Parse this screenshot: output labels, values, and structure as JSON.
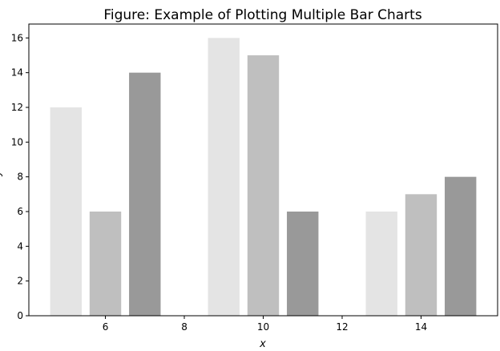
{
  "chart_data": {
    "type": "bar",
    "title": "Figure: Example of Plotting Multiple Bar Charts",
    "xlabel": "x",
    "ylabel": "y",
    "series": [
      {
        "color": "#e4e4e4",
        "x": [
          5,
          9,
          13
        ],
        "values": [
          12,
          16,
          6
        ]
      },
      {
        "color": "#bfbfbf",
        "x": [
          6,
          10,
          14
        ],
        "values": [
          6,
          15,
          7
        ]
      },
      {
        "color": "#999999",
        "x": [
          7,
          11,
          15
        ],
        "values": [
          14,
          6,
          8
        ]
      }
    ],
    "bar_width": 0.8,
    "xlim": [
      4.06,
      15.94
    ],
    "xticks": [
      6,
      8,
      10,
      12,
      14
    ],
    "ylim": [
      0,
      16.8
    ],
    "yticks": [
      0,
      2,
      4,
      6,
      8,
      10,
      12,
      14,
      16
    ]
  }
}
